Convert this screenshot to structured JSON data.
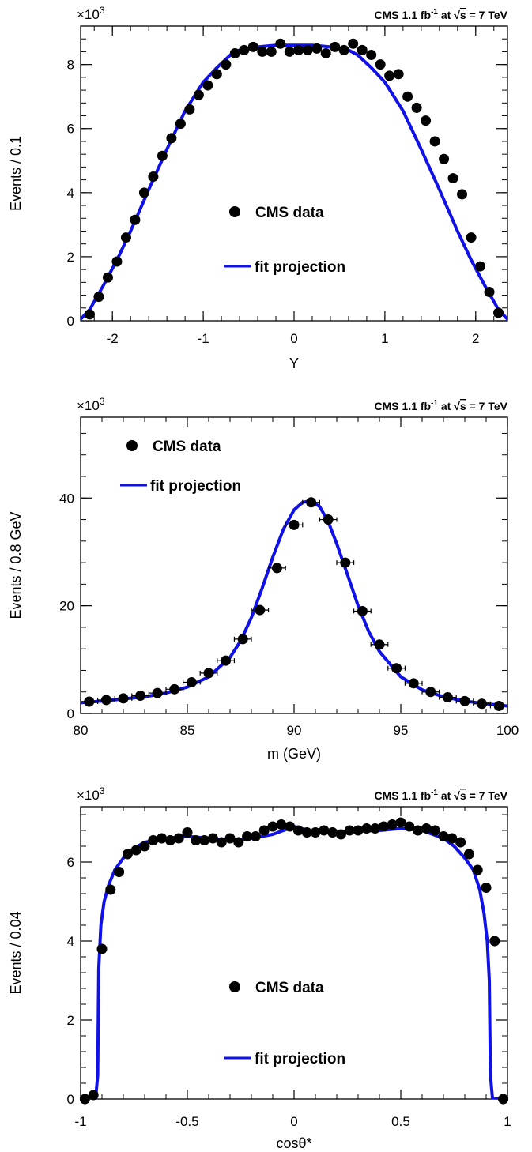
{
  "colors": {
    "data": "#000000",
    "fit": "#1010e8",
    "frame": "#000000"
  },
  "chart_data": [
    {
      "type": "scatter",
      "cms_label": {
        "main": "CMS 1.1 fb",
        "sup": "-1",
        "mid": " at ",
        "root": "s",
        "tail": " = 7 TeV"
      },
      "y_multiplier": {
        "base": "×10",
        "exp": "3"
      },
      "xlabel": "Y",
      "ylabel": "Events / 0.1",
      "xlim": [
        -2.35,
        2.35
      ],
      "ylim": [
        0,
        9.2
      ],
      "x_ticks": [
        -2,
        -1,
        0,
        1,
        2
      ],
      "x_tick_labels": [
        "-2",
        "-1",
        "0",
        "1",
        "2"
      ],
      "y_ticks": [
        0,
        2,
        4,
        6,
        8
      ],
      "y_tick_labels": [
        "0",
        "2",
        "4",
        "6",
        "8"
      ],
      "legend": {
        "data": "CMS data",
        "fit": "fit projection",
        "pos": "center"
      },
      "series": [
        {
          "name": "CMS data",
          "kind": "points",
          "x": [
            -2.25,
            -2.15,
            -2.05,
            -1.95,
            -1.85,
            -1.75,
            -1.65,
            -1.55,
            -1.45,
            -1.35,
            -1.25,
            -1.15,
            -1.05,
            -0.95,
            -0.85,
            -0.75,
            -0.65,
            -0.55,
            -0.45,
            -0.35,
            -0.25,
            -0.15,
            -0.05,
            0.05,
            0.15,
            0.25,
            0.35,
            0.45,
            0.55,
            0.65,
            0.75,
            0.85,
            0.95,
            1.05,
            1.15,
            1.25,
            1.35,
            1.45,
            1.55,
            1.65,
            1.75,
            1.85,
            1.95,
            2.05,
            2.15,
            2.25
          ],
          "y": [
            0.2,
            0.75,
            1.35,
            1.85,
            2.6,
            3.15,
            4.0,
            4.5,
            5.15,
            5.7,
            6.15,
            6.6,
            7.05,
            7.35,
            7.7,
            8.0,
            8.35,
            8.45,
            8.55,
            8.4,
            8.4,
            8.65,
            8.4,
            8.45,
            8.45,
            8.5,
            8.35,
            8.55,
            8.45,
            8.65,
            8.45,
            8.3,
            8.0,
            7.65,
            7.7,
            7.0,
            6.65,
            6.25,
            5.6,
            5.05,
            4.45,
            3.95,
            2.6,
            1.7,
            0.9,
            0.25
          ]
        },
        {
          "name": "fit projection",
          "kind": "line",
          "x": [
            -2.35,
            -2.25,
            -2.1,
            -1.95,
            -1.8,
            -1.6,
            -1.4,
            -1.2,
            -1.0,
            -0.85,
            -0.7,
            -0.6,
            -0.4,
            -0.2,
            0,
            0.2,
            0.4,
            0.6,
            0.7,
            0.85,
            1.0,
            1.2,
            1.4,
            1.6,
            1.8,
            1.95,
            2.1,
            2.25,
            2.35
          ],
          "y": [
            0.05,
            0.35,
            1.1,
            1.9,
            2.8,
            4.1,
            5.35,
            6.55,
            7.45,
            7.9,
            8.3,
            8.45,
            8.55,
            8.6,
            8.6,
            8.6,
            8.55,
            8.45,
            8.3,
            7.9,
            7.45,
            6.55,
            5.35,
            4.1,
            2.8,
            1.9,
            1.1,
            0.35,
            0.05
          ]
        }
      ]
    },
    {
      "type": "scatter",
      "cms_label": {
        "main": "CMS 1.1 fb",
        "sup": "-1",
        "mid": " at ",
        "root": "s",
        "tail": " = 7 TeV"
      },
      "y_multiplier": {
        "base": "×10",
        "exp": "3"
      },
      "xlabel": "m (GeV)",
      "ylabel": "Events / 0.8 GeV",
      "xlim": [
        80,
        100
      ],
      "ylim": [
        0,
        55
      ],
      "x_ticks": [
        80,
        85,
        90,
        95,
        100
      ],
      "x_tick_labels": [
        "80",
        "85",
        "90",
        "95",
        "100"
      ],
      "y_ticks": [
        0,
        20,
        40
      ],
      "y_tick_labels": [
        "0",
        "20",
        "40"
      ],
      "legend": {
        "data": "CMS data",
        "fit": "fit projection",
        "pos": "top-left"
      },
      "series": [
        {
          "name": "CMS data",
          "kind": "points",
          "xerr": 0.4,
          "x": [
            80.4,
            81.2,
            82.0,
            82.8,
            83.6,
            84.4,
            85.2,
            86.0,
            86.8,
            87.6,
            88.4,
            89.2,
            90.0,
            90.8,
            91.6,
            92.4,
            93.2,
            94.0,
            94.8,
            95.6,
            96.4,
            97.2,
            98.0,
            98.8,
            99.6
          ],
          "y": [
            2.2,
            2.5,
            2.8,
            3.3,
            3.8,
            4.5,
            5.8,
            7.5,
            9.8,
            13.8,
            19.2,
            27.0,
            35.0,
            39.2,
            36.0,
            28.0,
            19.0,
            12.8,
            8.4,
            5.6,
            4.0,
            3.0,
            2.3,
            1.8,
            1.4
          ]
        },
        {
          "name": "fit projection",
          "kind": "line",
          "x": [
            80,
            81,
            82,
            83,
            84,
            85,
            86,
            87,
            87.5,
            88,
            88.5,
            89,
            89.5,
            90,
            90.4,
            90.8,
            91.2,
            91.6,
            92,
            92.5,
            93,
            93.5,
            94,
            95,
            96,
            97,
            98,
            99,
            100
          ],
          "y": [
            2.0,
            2.3,
            2.7,
            3.1,
            3.8,
            4.9,
            6.8,
            10.4,
            13.5,
            17.8,
            23.2,
            29.0,
            34.2,
            37.8,
            39.2,
            39.5,
            38.4,
            35.6,
            31.5,
            25.8,
            20.0,
            15.2,
            11.5,
            6.8,
            4.4,
            3.1,
            2.3,
            1.8,
            1.4
          ]
        }
      ]
    },
    {
      "type": "scatter",
      "cms_label": {
        "main": "CMS 1.1 fb",
        "sup": "-1",
        "mid": " at ",
        "root": "s",
        "tail": " = 7 TeV"
      },
      "y_multiplier": {
        "base": "×10",
        "exp": "3"
      },
      "xlabel": "cosθ*",
      "ylabel": "Events / 0.04",
      "xlim": [
        -1,
        1
      ],
      "ylim": [
        0,
        7.4
      ],
      "x_ticks": [
        -1,
        -0.5,
        0,
        0.5,
        1
      ],
      "x_tick_labels": [
        "-1",
        "-0.5",
        "0",
        "0.5",
        "1"
      ],
      "y_ticks": [
        0,
        2,
        4,
        6
      ],
      "y_tick_labels": [
        "0",
        "2",
        "4",
        "6"
      ],
      "legend": {
        "data": "CMS data",
        "fit": "fit projection",
        "pos": "center"
      },
      "series": [
        {
          "name": "CMS data",
          "kind": "points",
          "x": [
            -0.98,
            -0.94,
            -0.9,
            -0.86,
            -0.82,
            -0.78,
            -0.74,
            -0.7,
            -0.66,
            -0.62,
            -0.58,
            -0.54,
            -0.5,
            -0.46,
            -0.42,
            -0.38,
            -0.34,
            -0.3,
            -0.26,
            -0.22,
            -0.18,
            -0.14,
            -0.1,
            -0.06,
            -0.02,
            0.02,
            0.06,
            0.1,
            0.14,
            0.18,
            0.22,
            0.26,
            0.3,
            0.34,
            0.38,
            0.42,
            0.46,
            0.5,
            0.54,
            0.58,
            0.62,
            0.66,
            0.7,
            0.74,
            0.78,
            0.82,
            0.86,
            0.9,
            0.94,
            0.98
          ],
          "y": [
            0.0,
            0.1,
            3.8,
            5.3,
            5.75,
            6.2,
            6.3,
            6.4,
            6.55,
            6.6,
            6.55,
            6.6,
            6.75,
            6.55,
            6.55,
            6.6,
            6.5,
            6.6,
            6.5,
            6.65,
            6.65,
            6.8,
            6.9,
            6.95,
            6.9,
            6.8,
            6.75,
            6.75,
            6.8,
            6.75,
            6.7,
            6.8,
            6.8,
            6.85,
            6.85,
            6.9,
            6.95,
            7.0,
            6.9,
            6.8,
            6.85,
            6.8,
            6.65,
            6.6,
            6.5,
            6.2,
            5.8,
            5.35,
            4.0,
            0.0
          ]
        },
        {
          "name": "fit projection",
          "kind": "line",
          "x": [
            -1.0,
            -0.93,
            -0.92,
            -0.915,
            -0.905,
            -0.89,
            -0.87,
            -0.84,
            -0.8,
            -0.75,
            -0.7,
            -0.6,
            -0.5,
            -0.4,
            -0.3,
            -0.2,
            -0.1,
            0,
            0.1,
            0.2,
            0.3,
            0.4,
            0.5,
            0.6,
            0.7,
            0.75,
            0.8,
            0.84,
            0.87,
            0.89,
            0.905,
            0.915,
            0.92,
            0.93,
            1.0
          ],
          "y": [
            0.0,
            0.0,
            0.6,
            3.3,
            4.4,
            5.0,
            5.4,
            5.8,
            6.1,
            6.35,
            6.5,
            6.6,
            6.65,
            6.6,
            6.55,
            6.6,
            6.7,
            6.9,
            6.75,
            6.75,
            6.78,
            6.8,
            6.85,
            6.8,
            6.6,
            6.4,
            6.1,
            5.8,
            5.3,
            4.7,
            4.0,
            3.0,
            0.6,
            0.0,
            0.0
          ]
        }
      ]
    }
  ]
}
